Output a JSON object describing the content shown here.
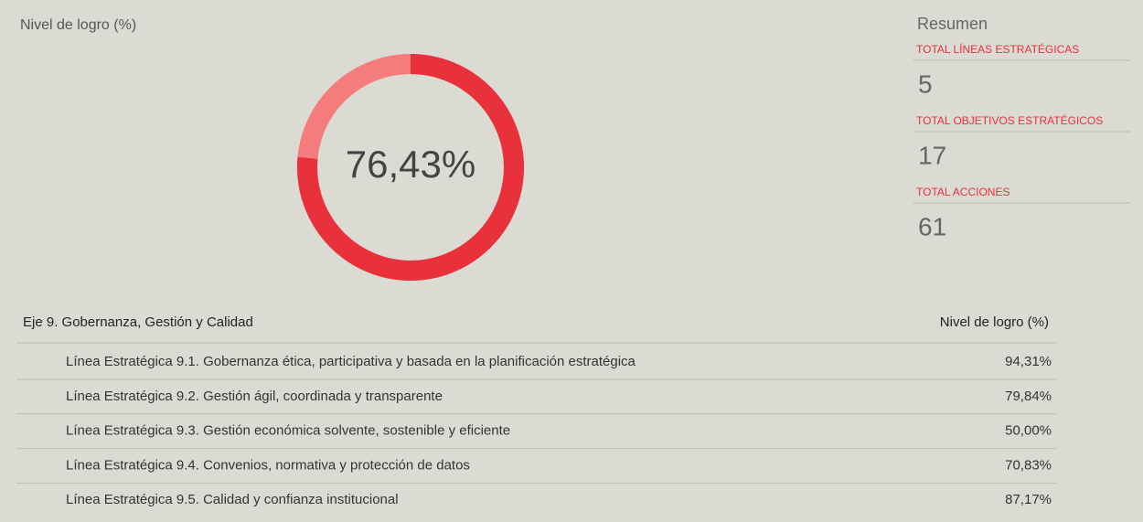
{
  "panel_title": "Nivel de logro (%)",
  "donut": {
    "value": 76.43,
    "label": "76,43%",
    "range": [
      0,
      100
    ],
    "color": "#e8313a",
    "rest_color": "#f47c7c"
  },
  "summary": {
    "title": "Resumen",
    "items": [
      {
        "label": "TOTAL LÍNEAS ESTRATÉGICAS",
        "value": "5"
      },
      {
        "label": "TOTAL OBJETIVOS ESTRATÉGICOS",
        "value": "17"
      },
      {
        "label": "TOTAL ACCIONES",
        "value": "61"
      }
    ]
  },
  "table": {
    "header": [
      "Eje 9. Gobernanza, Gestión y Calidad",
      "Nivel de logro (%)"
    ],
    "rows": [
      [
        "Línea Estratégica 9.1. Gobernanza ética, participativa y basada en la planificación estratégica",
        "94,31%"
      ],
      [
        "Línea Estratégica 9.2. Gestión ágil, coordinada y transparente",
        "79,84%"
      ],
      [
        "Línea Estratégica 9.3. Gestión económica solvente, sostenible y eficiente",
        "50,00%"
      ],
      [
        "Línea Estratégica 9.4. Convenios, normativa y protección de datos",
        "70,83%"
      ],
      [
        "Línea Estratégica 9.5. Calidad y confianza institucional",
        "87,17%"
      ]
    ]
  }
}
